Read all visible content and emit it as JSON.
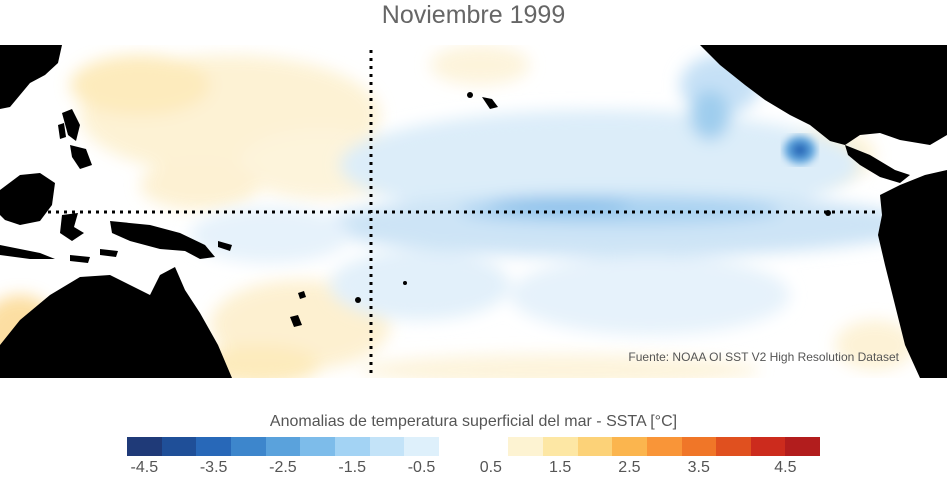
{
  "title": "Noviembre 1999",
  "source_note": "Fuente: NOAA OI SST V2 High Resolution Dataset",
  "colorbar": {
    "title": "Anomalias de temperatura superficial del mar - SSTA  [°C]",
    "tick_labels": [
      "-4.5",
      "-3.5",
      "-2.5",
      "-1.5",
      "-0.5",
      "0.5",
      "1.5",
      "2.5",
      "3.5",
      "4.5"
    ],
    "colors": [
      "#1f3a78",
      "#1f4f98",
      "#2868b8",
      "#3d86cc",
      "#5aa2dc",
      "#7dbcea",
      "#a3d3f4",
      "#c3e3f8",
      "#def0fb",
      "#ffffff",
      "#ffffff",
      "#fdf3d2",
      "#fde7a4",
      "#fcd278",
      "#fbb54e",
      "#f99538",
      "#f07628",
      "#e0501f",
      "#cc2b1d",
      "#b21d1d"
    ]
  },
  "map": {
    "land_color": "#000000",
    "ocean_neutral": "#ffffff",
    "cool_anomaly_color": "#a3d3f4",
    "warm_anomaly_color": "#fde7a4",
    "equator_line": "dotted",
    "dateline_line": "dotted"
  }
}
